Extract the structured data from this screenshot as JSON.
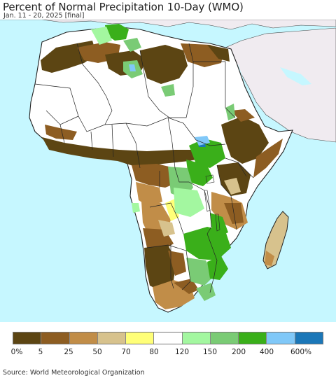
{
  "header": {
    "title": "Percent of Normal Precipitation 10-Day (WMO)",
    "subtitle": "Jan. 11 - 20, 2025 [final]"
  },
  "map": {
    "ocean_color": "#c6f7ff",
    "non_africa_land_color": "#f0ebf0",
    "border_color": "#222222"
  },
  "legend": {
    "colors": [
      "#5c4513",
      "#8d5d22",
      "#c18d48",
      "#d7c28d",
      "#ffff78",
      "#ffffff",
      "#a3f7a0",
      "#7acb75",
      "#3aaf1a",
      "#80c8f8",
      "#1b77b8"
    ],
    "labels": [
      "0%",
      "5",
      "25",
      "50",
      "70",
      "80",
      "120",
      "150",
      "200",
      "400",
      "600%"
    ]
  },
  "footer": {
    "source": "Source: World Meteorological Organization"
  }
}
